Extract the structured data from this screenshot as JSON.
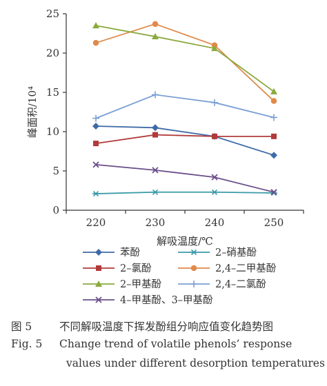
{
  "chart_data": {
    "type": "line",
    "x": [
      220,
      230,
      240,
      250
    ],
    "xlabel": "解吸温度/℃",
    "ylabel": "峰面积/10⁴",
    "ylim": [
      0,
      25
    ],
    "yticks": [
      0,
      5,
      10,
      15,
      20,
      25
    ],
    "grid": false,
    "legend_position": "bottom",
    "series": [
      {
        "name": "苯酚",
        "values": [
          10.7,
          10.5,
          9.4,
          7.0
        ],
        "color": "#3e6aa8",
        "marker": "diamond"
      },
      {
        "name": "2–硝基酚",
        "values": [
          2.1,
          2.3,
          2.3,
          2.2
        ],
        "color": "#3a9aa8",
        "marker": "star"
      },
      {
        "name": "2–氯酚",
        "values": [
          8.5,
          9.6,
          9.4,
          9.4
        ],
        "color": "#b03a3a",
        "marker": "square"
      },
      {
        "name": "2,4–二甲基酚",
        "values": [
          21.3,
          23.7,
          21.0,
          13.9
        ],
        "color": "#e08a4a",
        "marker": "circle"
      },
      {
        "name": "2–甲基酚",
        "values": [
          23.5,
          22.1,
          20.6,
          15.1
        ],
        "color": "#8aaa3e",
        "marker": "triangle"
      },
      {
        "name": "2,4–二氯酚",
        "values": [
          11.7,
          14.7,
          13.7,
          11.8
        ],
        "color": "#7a9fd4",
        "marker": "plus"
      },
      {
        "name": "4–甲基酚、3–甲基酚",
        "values": [
          5.8,
          5.1,
          4.2,
          2.3
        ],
        "color": "#6a4e8a",
        "marker": "x"
      }
    ]
  },
  "caption": {
    "zh_label": "图 5",
    "zh_text": "不同解吸温度下挥发酚组分响应值变化趋势图",
    "en_label": "Fig. 5",
    "en_line1": "Change trend of volatile phenols’ response",
    "en_line2": "values under different desorption temperatures"
  }
}
